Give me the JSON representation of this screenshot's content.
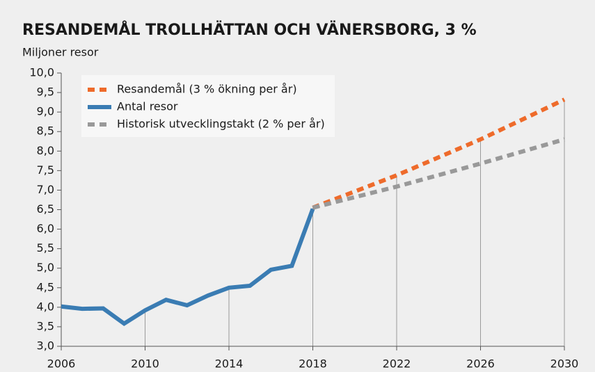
{
  "chart_data": {
    "type": "line",
    "title": "RESANDEMÅL TROLLHÄTTAN OCH VÄNERSBORG, 3 %",
    "y_label": "Miljoner resor",
    "xlim": [
      2006,
      2030
    ],
    "xticks": [
      2006,
      2010,
      2014,
      2018,
      2022,
      2026,
      2030
    ],
    "ylim": [
      3.0,
      10.0
    ],
    "yticks": [
      {
        "value": 3.0,
        "label": "3,0"
      },
      {
        "value": 3.5,
        "label": "3,5"
      },
      {
        "value": 4.0,
        "label": "4,0"
      },
      {
        "value": 4.5,
        "label": "4,5"
      },
      {
        "value": 5.0,
        "label": "5,0"
      },
      {
        "value": 5.5,
        "label": "5,5"
      },
      {
        "value": 6.0,
        "label": "6,0"
      },
      {
        "value": 6.5,
        "label": "6,5"
      },
      {
        "value": 7.0,
        "label": "7,0"
      },
      {
        "value": 7.5,
        "label": "7,5"
      },
      {
        "value": 8.0,
        "label": "8,0"
      },
      {
        "value": 8.5,
        "label": "8,5"
      },
      {
        "value": 9.0,
        "label": "9,0"
      },
      {
        "value": 9.5,
        "label": "9,5"
      },
      {
        "value": 10.0,
        "label": "10,0"
      }
    ],
    "legend": "upper left",
    "series": [
      {
        "name": "Resandemål (3 % ökning per år)",
        "color": "#ee6b2b",
        "dashed": true,
        "x": [
          2018,
          2022,
          2026,
          2030
        ],
        "values": [
          6.55,
          7.38,
          8.3,
          9.32
        ]
      },
      {
        "name": "Antal resor",
        "color": "#3a7cb3",
        "dashed": false,
        "x": [
          2006,
          2007,
          2008,
          2009,
          2010,
          2011,
          2012,
          2013,
          2014,
          2015,
          2016,
          2017,
          2018
        ],
        "values": [
          4.02,
          3.96,
          3.97,
          3.58,
          3.92,
          4.19,
          4.05,
          4.3,
          4.5,
          4.55,
          4.96,
          5.06,
          6.52
        ]
      },
      {
        "name": "Historisk utvecklingstakt (2 % per år)",
        "color": "#999999",
        "dashed": true,
        "x": [
          2018,
          2022,
          2026,
          2030
        ],
        "values": [
          6.55,
          7.09,
          7.68,
          8.3
        ]
      }
    ]
  }
}
